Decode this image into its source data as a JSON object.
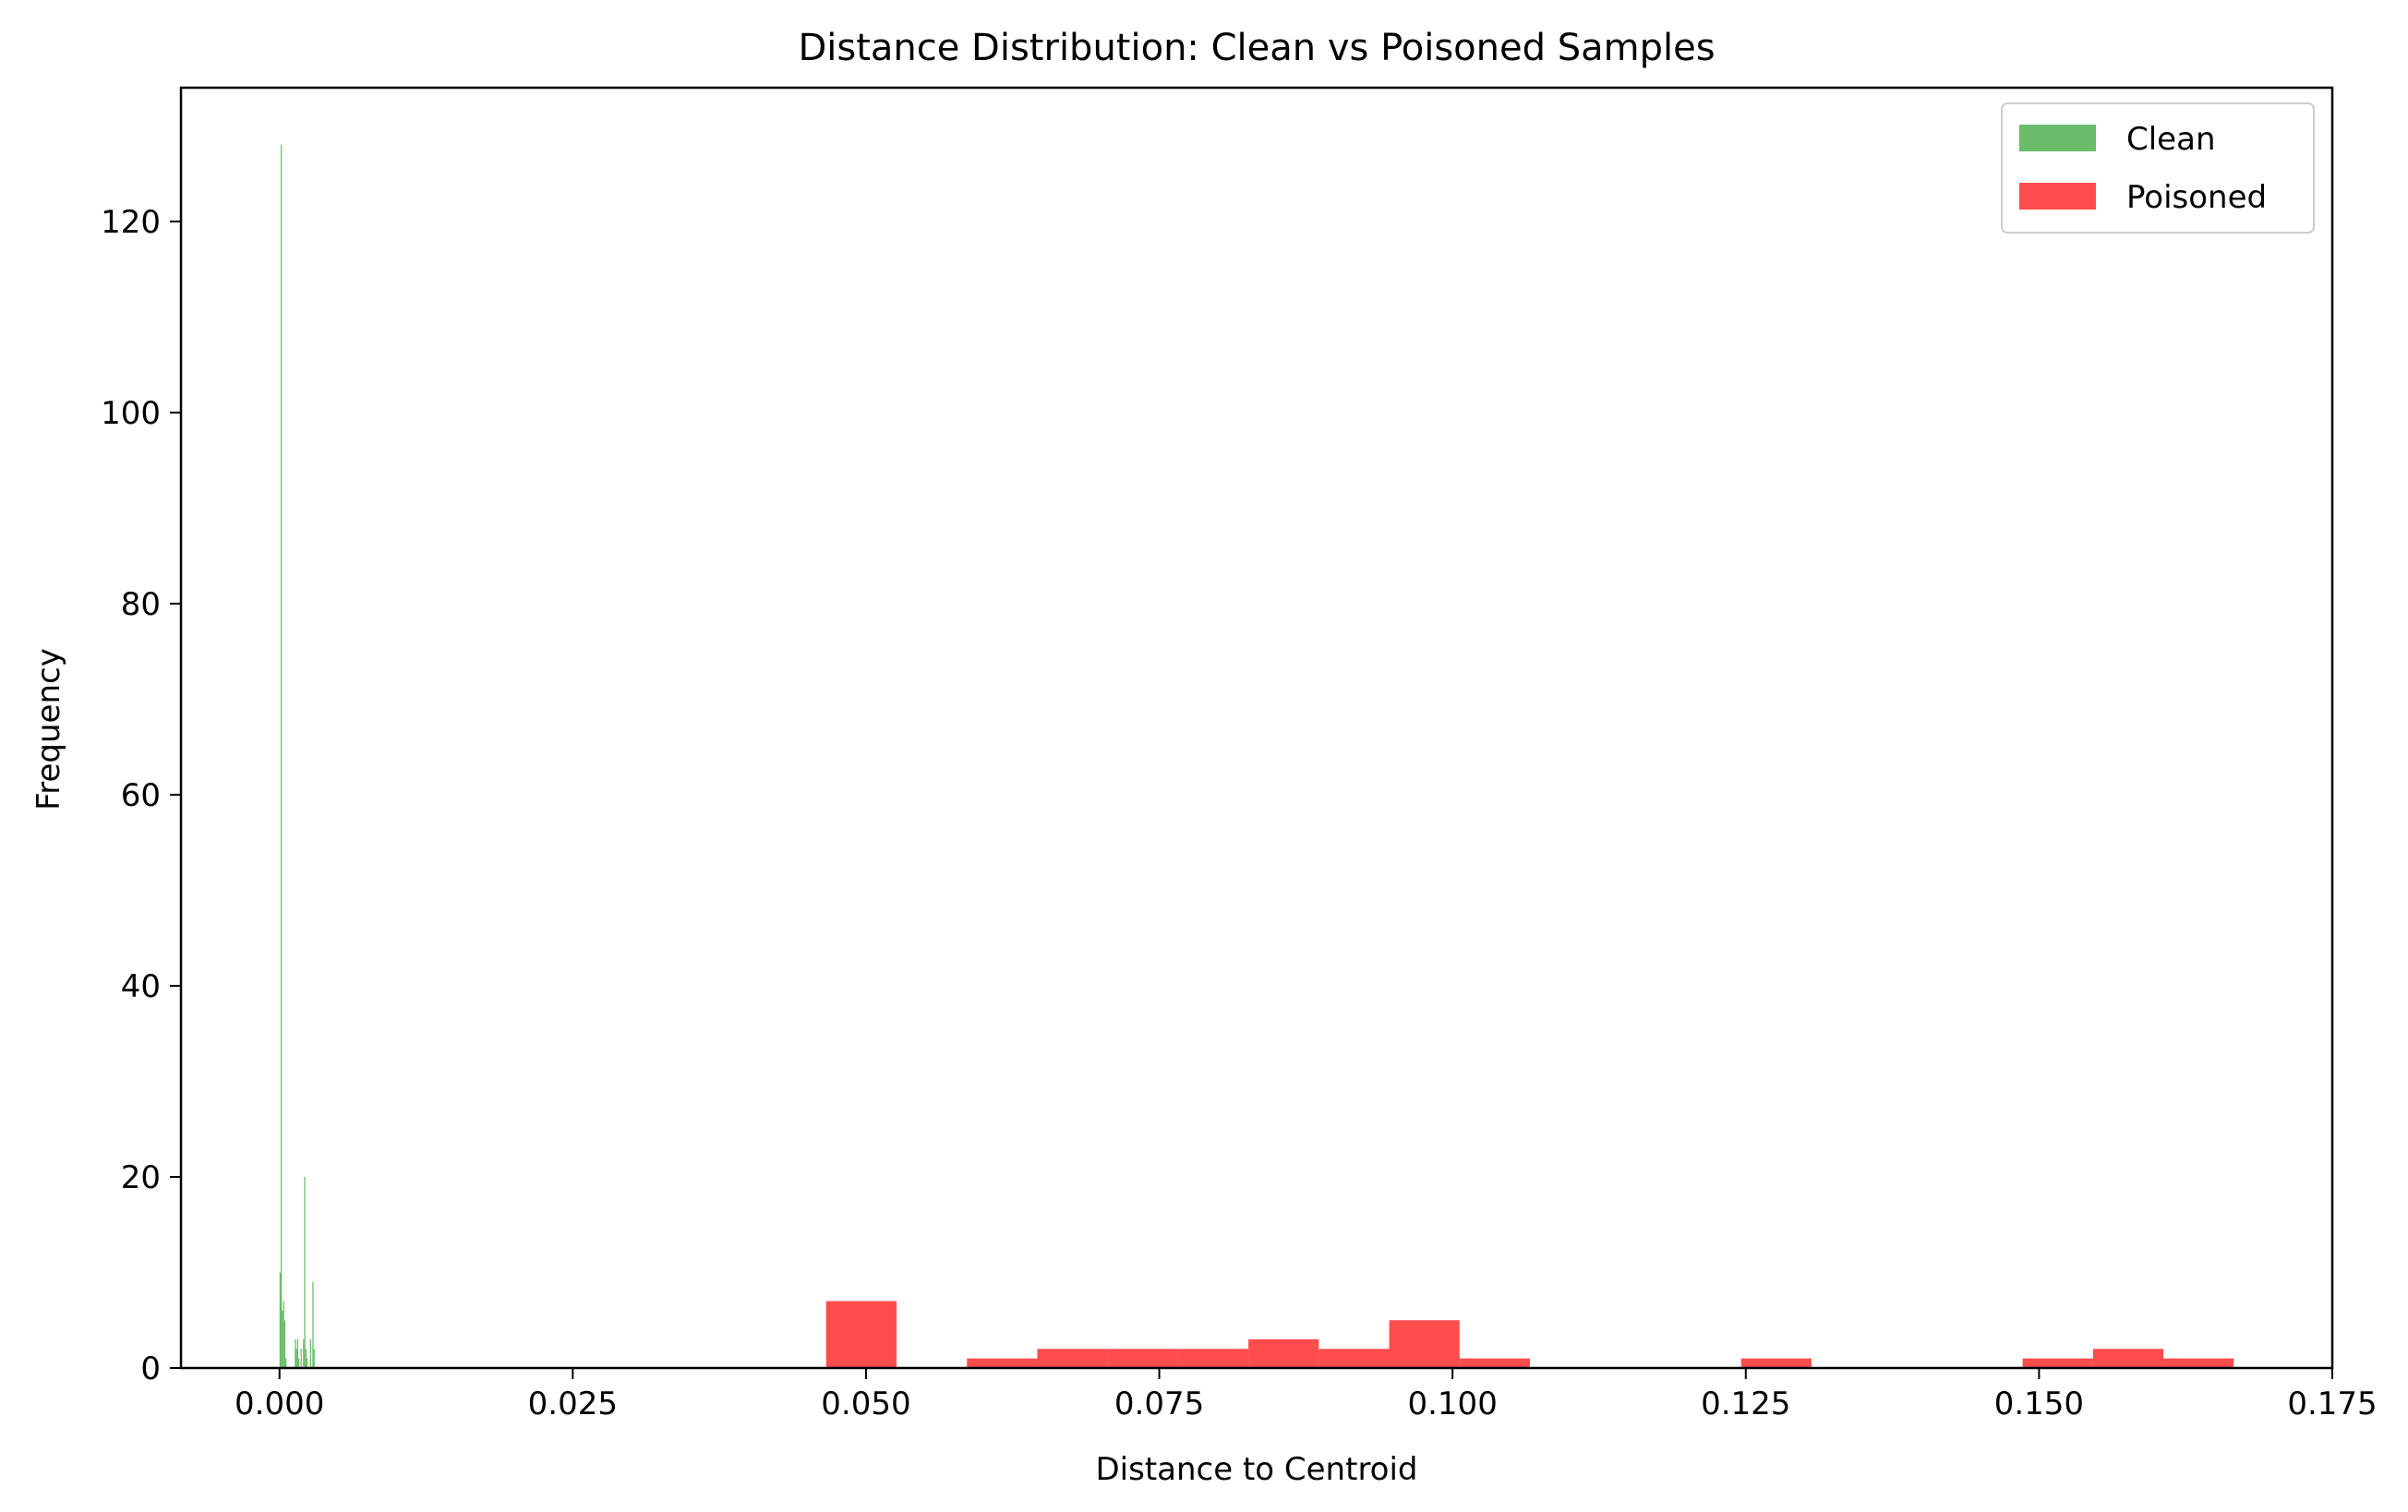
{
  "chart_data": {
    "type": "bar",
    "title": "Distance Distribution: Clean vs Poisoned Samples",
    "xlabel": "Distance to Centroid",
    "ylabel": "Frequency",
    "xlim": [
      -0.0084,
      0.175
    ],
    "ylim": [
      0,
      134
    ],
    "xticks": [
      {
        "value": 0.0,
        "label": "0.000"
      },
      {
        "value": 0.025,
        "label": "0.025"
      },
      {
        "value": 0.05,
        "label": "0.050"
      },
      {
        "value": 0.075,
        "label": "0.075"
      },
      {
        "value": 0.1,
        "label": "0.100"
      },
      {
        "value": 0.125,
        "label": "0.125"
      },
      {
        "value": 0.15,
        "label": "0.150"
      },
      {
        "value": 0.175,
        "label": "0.175"
      }
    ],
    "yticks": [
      {
        "value": 0,
        "label": "0"
      },
      {
        "value": 20,
        "label": "20"
      },
      {
        "value": 40,
        "label": "40"
      },
      {
        "value": 60,
        "label": "60"
      },
      {
        "value": 80,
        "label": "80"
      },
      {
        "value": 100,
        "label": "100"
      },
      {
        "value": 120,
        "label": "120"
      }
    ],
    "grid": false,
    "legend_position": "top-right",
    "series": [
      {
        "name": "Clean",
        "color": "#2ca02c",
        "bins": [
          {
            "x0": 0.0,
            "x1": 0.0001,
            "count": 10
          },
          {
            "x0": 0.0001,
            "x1": 0.0002,
            "count": 128
          },
          {
            "x0": 0.0002,
            "x1": 0.0003,
            "count": 6
          },
          {
            "x0": 0.0003,
            "x1": 0.0004,
            "count": 7
          },
          {
            "x0": 0.0004,
            "x1": 0.0005,
            "count": 5
          },
          {
            "x0": 0.0005,
            "x1": 0.0006,
            "count": 1
          },
          {
            "x0": 0.0013,
            "x1": 0.0014,
            "count": 3
          },
          {
            "x0": 0.0014,
            "x1": 0.0015,
            "count": 2
          },
          {
            "x0": 0.0015,
            "x1": 0.0016,
            "count": 3
          },
          {
            "x0": 0.0016,
            "x1": 0.0017,
            "count": 1
          },
          {
            "x0": 0.0018,
            "x1": 0.0019,
            "count": 2
          },
          {
            "x0": 0.002,
            "x1": 0.0021,
            "count": 3
          },
          {
            "x0": 0.0021,
            "x1": 0.0022,
            "count": 20
          },
          {
            "x0": 0.0022,
            "x1": 0.0023,
            "count": 2
          },
          {
            "x0": 0.0023,
            "x1": 0.0024,
            "count": 1
          },
          {
            "x0": 0.0026,
            "x1": 0.0027,
            "count": 3
          },
          {
            "x0": 0.0028,
            "x1": 0.0029,
            "count": 9
          },
          {
            "x0": 0.0029,
            "x1": 0.003,
            "count": 2
          }
        ]
      },
      {
        "name": "Poisoned",
        "color": "#ff0000",
        "bins": [
          {
            "x0": 0.0466,
            "x1": 0.0526,
            "count": 7
          },
          {
            "x0": 0.0526,
            "x1": 0.0586,
            "count": 0
          },
          {
            "x0": 0.0586,
            "x1": 0.0646,
            "count": 1
          },
          {
            "x0": 0.0646,
            "x1": 0.0706,
            "count": 2
          },
          {
            "x0": 0.0706,
            "x1": 0.0766,
            "count": 2
          },
          {
            "x0": 0.0766,
            "x1": 0.0826,
            "count": 2
          },
          {
            "x0": 0.0826,
            "x1": 0.0886,
            "count": 3
          },
          {
            "x0": 0.0886,
            "x1": 0.0946,
            "count": 2
          },
          {
            "x0": 0.0946,
            "x1": 0.1006,
            "count": 5
          },
          {
            "x0": 0.1006,
            "x1": 0.1066,
            "count": 1
          },
          {
            "x0": 0.1066,
            "x1": 0.1126,
            "count": 0
          },
          {
            "x0": 0.1126,
            "x1": 0.1186,
            "count": 0
          },
          {
            "x0": 0.1186,
            "x1": 0.1246,
            "count": 0
          },
          {
            "x0": 0.1246,
            "x1": 0.1306,
            "count": 1
          },
          {
            "x0": 0.1306,
            "x1": 0.1366,
            "count": 0
          },
          {
            "x0": 0.1366,
            "x1": 0.1426,
            "count": 0
          },
          {
            "x0": 0.1426,
            "x1": 0.1486,
            "count": 0
          },
          {
            "x0": 0.1486,
            "x1": 0.1546,
            "count": 1
          },
          {
            "x0": 0.1546,
            "x1": 0.1606,
            "count": 2
          },
          {
            "x0": 0.1606,
            "x1": 0.1666,
            "count": 1
          }
        ]
      }
    ]
  }
}
